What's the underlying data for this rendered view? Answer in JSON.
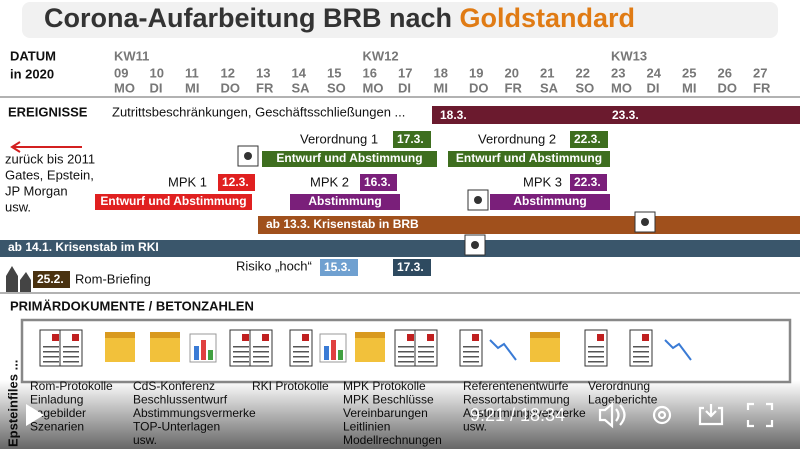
{
  "header": {
    "title": "Corona-Aufarbeitung BRB nach",
    "highlight": "Goldstandard"
  },
  "timeline": {
    "label": [
      "DATUM",
      "in 2020"
    ],
    "weeks": [
      "KW11",
      "KW12",
      "KW13"
    ],
    "days": [
      {
        "date": "09",
        "weekday": "MO"
      },
      {
        "date": "10",
        "weekday": "DI"
      },
      {
        "date": "11",
        "weekday": "MI"
      },
      {
        "date": "12",
        "weekday": "DO"
      },
      {
        "date": "13",
        "weekday": "FR"
      },
      {
        "date": "14",
        "weekday": "SA"
      },
      {
        "date": "15",
        "weekday": "SO"
      },
      {
        "date": "16",
        "weekday": "MO"
      },
      {
        "date": "17",
        "weekday": "DI"
      },
      {
        "date": "18",
        "weekday": "MI"
      },
      {
        "date": "19",
        "weekday": "DO"
      },
      {
        "date": "20",
        "weekday": "FR"
      },
      {
        "date": "21",
        "weekday": "SA"
      },
      {
        "date": "22",
        "weekday": "SO"
      },
      {
        "date": "23",
        "weekday": "MO"
      },
      {
        "date": "24",
        "weekday": "DI"
      },
      {
        "date": "25",
        "weekday": "MI"
      },
      {
        "date": "26",
        "weekday": "DO"
      },
      {
        "date": "27",
        "weekday": "FR"
      }
    ]
  },
  "events": {
    "heading": "EREIGNISSE",
    "restrictions": {
      "text": "Zutrittsbeschränkungen, Geschäftsschließungen ...",
      "start": "18.3.",
      "end": "23.3."
    },
    "note": [
      "zurück bis 2011",
      "Gates, Epstein,",
      "JP Morgan",
      "usw."
    ],
    "ordinances": [
      {
        "label": "Verordnung 1",
        "date": "17.3.",
        "bar": "Entwurf und Abstimmung"
      },
      {
        "label": "Verordnung 2",
        "date": "22.3.",
        "bar": "Entwurf und Abstimmung"
      }
    ],
    "mpk": [
      {
        "label": "MPK 1",
        "date": "12.3.",
        "bar": "Entwurf und Abstimmung"
      },
      {
        "label": "MPK 2",
        "date": "16.3.",
        "bar": "Abstimmung"
      },
      {
        "label": "MPK 3",
        "date": "22.3.",
        "bar": "Abstimmung"
      }
    ],
    "crisis_brb": "ab 13.3. Krisenstab in BRB",
    "crisis_rki": "ab 14.1. Krisenstab im RKI",
    "rome": {
      "date": "25.2.",
      "label": "Rom-Briefing"
    },
    "risk": {
      "label": "Risiko „hoch“",
      "date": "15.3.",
      "second_date": "17.3."
    }
  },
  "documents": {
    "heading": "PRIMÄRDOKUMENTE  /  BETONZAHLEN",
    "side": "Epsteinfiles ...",
    "columns": [
      [
        "Rom-Protokolle",
        "Einladung",
        "Lagebilder",
        "Szenarien"
      ],
      [
        "CdS-Konferenz",
        "Beschlussentwurf",
        "Abstimmungsvermerke",
        "TOP-Unterlagen",
        "usw."
      ],
      [
        "RKI Protokolle"
      ],
      [
        "MPK Protokolle",
        "MPK Beschlüsse",
        "Vereinbarungen",
        "Leitlinien",
        "Modellrechnungen"
      ],
      [
        "Referentenentwürfe",
        "Ressortabstimmung",
        "Abstimmungsvermerke",
        "usw."
      ],
      [
        "Verordnung",
        "Lageberichte"
      ]
    ]
  },
  "player": {
    "time": "9:21 / 18:34"
  }
}
